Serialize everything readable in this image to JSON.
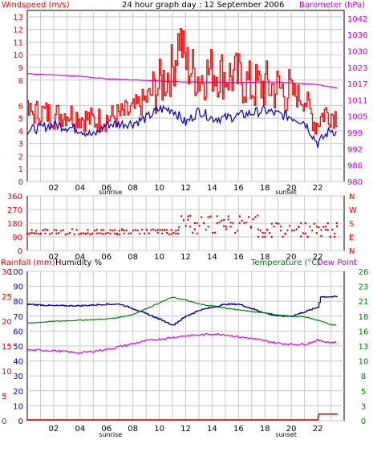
{
  "header": {
    "left_title": "Windspeed (m/s)",
    "center_title": "24 hour graph day : 12 September 2006",
    "right_title": "Barometer (hPa)"
  },
  "panel3_header": {
    "rain": "Rainfall (mm)",
    "humidity": "Humidity %",
    "temperature": "Temperature (°C)",
    "dew": "Dew Point"
  },
  "x_ticks": [
    "02",
    "04",
    "06",
    "08",
    "10",
    "12",
    "14",
    "16",
    "18",
    "20",
    "22"
  ],
  "sun_labels": {
    "sunrise": "sunrise",
    "sunset": "sunset"
  },
  "colors": {
    "windspeed": "#ff0000",
    "wind_avg": "#0000cc",
    "barometer": "#dd00dd",
    "direction": "#dd0000",
    "humidity": "#0000aa",
    "temperature": "#008000",
    "dewpoint": "#dd00dd",
    "rain": "#cc0000",
    "blue_axis": "#0000cc",
    "magenta_axis": "#cc00cc",
    "green_axis": "#008000"
  },
  "chart_data": [
    {
      "type": "line",
      "name": "wind-barometer",
      "y_left_ticks": [
        "0",
        "1",
        "2",
        "3",
        "4",
        "5",
        "6",
        "8",
        "9",
        "10",
        "11",
        "12",
        "13"
      ],
      "y_left_values": [
        0,
        1,
        2,
        3,
        4,
        5,
        6,
        8,
        9,
        10,
        11,
        12,
        13
      ],
      "y_right_ticks": [
        "980",
        "986",
        "992",
        "999",
        "1005",
        "1011",
        "1017",
        "1023",
        "1030",
        "1036",
        "1042"
      ],
      "ylim_left": [
        0,
        13.5
      ],
      "ylim_right": [
        980,
        1045
      ],
      "series": [
        {
          "name": "Windspeed (m/s)",
          "x": [
            0,
            1,
            2,
            3,
            4,
            5,
            6,
            7,
            8,
            9,
            10,
            11,
            11.5,
            12,
            13,
            14,
            15,
            16,
            17,
            18,
            19,
            20,
            21,
            21.8,
            22.5,
            23.5
          ],
          "values": [
            5.3,
            5.5,
            5.2,
            5.4,
            5.1,
            4.8,
            5,
            5.2,
            5.6,
            6.5,
            7.6,
            9,
            11.5,
            9.3,
            8.2,
            8.8,
            8.4,
            8.2,
            7.4,
            7.6,
            7.3,
            7,
            6.5,
            4.5,
            5.5,
            5.2
          ]
        },
        {
          "name": "Barometer (hPa)",
          "x": [
            0,
            2,
            4,
            6,
            8,
            10,
            12,
            14,
            16,
            18,
            20,
            22,
            23.5
          ],
          "values": [
            1021,
            1020.5,
            1020,
            1019,
            1018.6,
            1018.2,
            1017.8,
            1017.8,
            1017.6,
            1017.8,
            1017.5,
            1016.8,
            1015.5
          ]
        }
      ],
      "avg_wind": {
        "x": [
          0,
          2,
          4,
          5,
          6,
          8,
          9,
          10,
          11,
          12,
          13,
          14,
          15,
          16,
          17,
          18,
          19,
          20,
          21,
          22,
          23,
          23.5
        ],
        "values": [
          4,
          4.5,
          4.1,
          3.6,
          4.5,
          4.6,
          5,
          5.7,
          5.7,
          4.6,
          5.6,
          5,
          5,
          5.2,
          5.4,
          5.6,
          5.3,
          5.1,
          4.7,
          3,
          4.1,
          3.8
        ]
      }
    },
    {
      "type": "scatter",
      "name": "wind-direction",
      "y_left_ticks": [
        "360",
        "270",
        "180",
        "90",
        "0"
      ],
      "y_right_ticks": [
        "N",
        "W",
        "S",
        "E",
        "N"
      ],
      "ylim": [
        0,
        360
      ],
      "bands": [
        {
          "from": 0,
          "to": 7,
          "values": [
            135,
            112
          ]
        },
        {
          "from": 7,
          "to": 11.5,
          "values": [
            135,
            112
          ]
        },
        {
          "from": 11.5,
          "to": 17.5,
          "values": [
            180,
            157,
            135,
            112,
            202,
            225
          ]
        },
        {
          "from": 17.5,
          "to": 23.5,
          "values": [
            135,
            112,
            157,
            90,
            180
          ]
        }
      ]
    },
    {
      "type": "line",
      "name": "rain-humidity-temperature",
      "y_rain_ticks": [
        "0",
        "5",
        "10",
        "15",
        "20",
        "25",
        "30"
      ],
      "y_hum_ticks": [
        "0",
        "10",
        "20",
        "30",
        "40",
        "50",
        "60",
        "70",
        "80",
        "90",
        "100"
      ],
      "y_temp_ticks": [
        "0",
        "3",
        "5",
        "8",
        "10",
        "13",
        "16",
        "18",
        "21",
        "23",
        "26"
      ],
      "hum_ylim": [
        0,
        100
      ],
      "temp_ylim": [
        0,
        26
      ],
      "series": [
        {
          "name": "Humidity %",
          "x": [
            0,
            2,
            4,
            6,
            7,
            8,
            10,
            11,
            12,
            13,
            14,
            15,
            16,
            17,
            18,
            19,
            20,
            21,
            22,
            22.2,
            23.5
          ],
          "values": [
            78,
            77,
            77,
            78,
            78,
            75,
            68,
            64,
            70,
            74,
            76,
            78,
            78,
            75,
            72,
            70,
            70,
            73,
            76,
            83,
            83
          ]
        },
        {
          "name": "Temperature (°C)",
          "x": [
            0,
            2,
            4,
            6,
            7,
            8,
            9,
            10,
            11,
            12,
            13,
            14,
            15,
            16,
            17,
            18,
            19,
            20,
            21,
            22,
            23,
            23.5
          ],
          "values": [
            17,
            17.3,
            17.5,
            17.7,
            18,
            18.5,
            19.5,
            20.5,
            21.5,
            21,
            20.3,
            20,
            19.6,
            19.3,
            19,
            18.8,
            18.4,
            18.2,
            18.1,
            17.5,
            16.7,
            16.6
          ]
        },
        {
          "name": "Dew Point",
          "x": [
            0,
            2,
            4,
            6,
            8,
            9,
            10,
            11,
            12,
            13,
            14,
            15,
            16,
            17,
            18,
            19,
            20,
            21,
            22,
            23,
            23.5
          ],
          "values": [
            12.3,
            12.2,
            11.8,
            12.4,
            13.4,
            13.9,
            14.2,
            14.5,
            14.8,
            14.9,
            15.1,
            15,
            14.6,
            14.3,
            13.9,
            13.5,
            13.3,
            13.3,
            14,
            13.6,
            13.7
          ]
        },
        {
          "name": "Rainfall (mm)",
          "x": [
            0,
            22,
            22.1,
            23.5
          ],
          "values": [
            0,
            0,
            1.2,
            1.2
          ]
        }
      ]
    }
  ]
}
